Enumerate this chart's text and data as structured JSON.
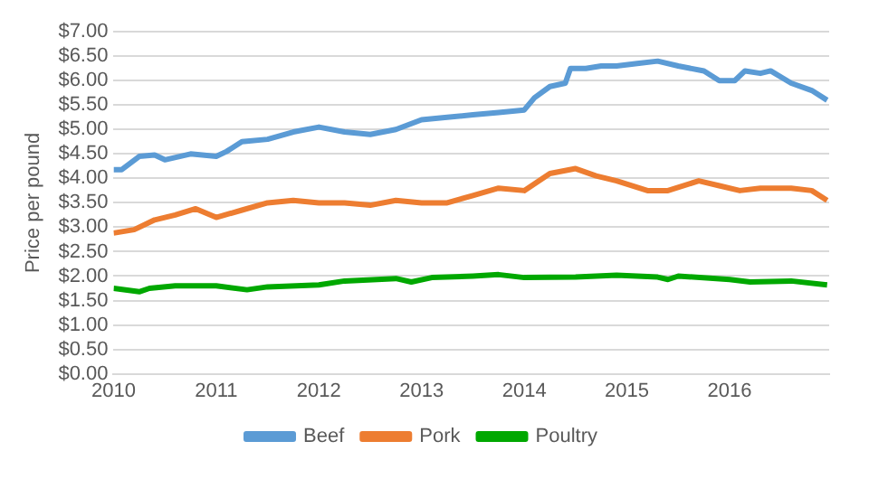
{
  "chart_data": {
    "type": "line",
    "ylabel": "Price per pound",
    "xlim": [
      2010,
      2016.97
    ],
    "xticks": [
      2010,
      2011,
      2012,
      2013,
      2014,
      2015,
      2016
    ],
    "ylim": [
      0,
      7
    ],
    "yticks": [
      {
        "value": 0,
        "label": "$0.00"
      },
      {
        "value": 0.5,
        "label": "$0.50"
      },
      {
        "value": 1,
        "label": "$1.00"
      },
      {
        "value": 1.5,
        "label": "$1.50"
      },
      {
        "value": 2,
        "label": "$2.00"
      },
      {
        "value": 2.5,
        "label": "$2.50"
      },
      {
        "value": 3,
        "label": "$3.00"
      },
      {
        "value": 3.5,
        "label": "$3.50"
      },
      {
        "value": 4,
        "label": "$4.00"
      },
      {
        "value": 4.5,
        "label": "$4.50"
      },
      {
        "value": 5,
        "label": "$5.00"
      },
      {
        "value": 5.5,
        "label": "$5.50"
      },
      {
        "value": 6,
        "label": "$6.00"
      },
      {
        "value": 6.5,
        "label": "$6.50"
      },
      {
        "value": 7,
        "label": "$7.00"
      }
    ],
    "grid": "y",
    "legend": "bottom",
    "marker": "none",
    "line_style": "solid",
    "series": [
      {
        "name": "Beef",
        "color": "#5b9bd5",
        "x": [
          2010,
          2010.08,
          2010.25,
          2010.4,
          2010.5,
          2010.75,
          2011,
          2011.1,
          2011.25,
          2011.5,
          2011.75,
          2012,
          2012.25,
          2012.5,
          2012.75,
          2013,
          2013.25,
          2013.5,
          2013.75,
          2014,
          2014.1,
          2014.25,
          2014.4,
          2014.45,
          2014.6,
          2014.75,
          2014.9,
          2015.1,
          2015.3,
          2015.5,
          2015.75,
          2015.9,
          2016.05,
          2016.15,
          2016.3,
          2016.4,
          2016.6,
          2016.8,
          2016.95
        ],
        "values": [
          4.18,
          4.18,
          4.45,
          4.48,
          4.38,
          4.5,
          4.45,
          4.55,
          4.75,
          4.8,
          4.95,
          5.05,
          4.95,
          4.9,
          5.0,
          5.2,
          5.25,
          5.3,
          5.35,
          5.4,
          5.65,
          5.88,
          5.95,
          6.25,
          6.25,
          6.3,
          6.3,
          6.35,
          6.4,
          6.3,
          6.2,
          6.0,
          6.0,
          6.2,
          6.15,
          6.2,
          5.95,
          5.8,
          5.6
        ]
      },
      {
        "name": "Pork",
        "color": "#ed7d31",
        "x": [
          2010,
          2010.2,
          2010.4,
          2010.6,
          2010.8,
          2011,
          2011.25,
          2011.5,
          2011.75,
          2012,
          2012.25,
          2012.5,
          2012.75,
          2013,
          2013.25,
          2013.5,
          2013.75,
          2014,
          2014.25,
          2014.5,
          2014.7,
          2014.9,
          2015.2,
          2015.4,
          2015.7,
          2015.9,
          2016.1,
          2016.3,
          2016.6,
          2016.8,
          2016.95
        ],
        "values": [
          2.88,
          2.95,
          3.15,
          3.25,
          3.38,
          3.2,
          3.35,
          3.5,
          3.55,
          3.5,
          3.5,
          3.45,
          3.55,
          3.5,
          3.5,
          3.65,
          3.8,
          3.75,
          4.1,
          4.2,
          4.05,
          3.95,
          3.75,
          3.75,
          3.95,
          3.85,
          3.75,
          3.8,
          3.8,
          3.75,
          3.55
        ]
      },
      {
        "name": "Poultry",
        "color": "#00a800",
        "x": [
          2010,
          2010.25,
          2010.35,
          2010.6,
          2011,
          2011.3,
          2011.5,
          2012,
          2012.25,
          2012.75,
          2012.9,
          2013.1,
          2013.5,
          2013.75,
          2014,
          2014.5,
          2014.9,
          2015.3,
          2015.4,
          2015.5,
          2016,
          2016.2,
          2016.6,
          2016.95
        ],
        "values": [
          1.75,
          1.68,
          1.75,
          1.8,
          1.8,
          1.72,
          1.78,
          1.82,
          1.9,
          1.95,
          1.88,
          1.97,
          2.0,
          2.03,
          1.97,
          1.98,
          2.02,
          1.98,
          1.93,
          2.0,
          1.93,
          1.88,
          1.9,
          1.82
        ]
      }
    ]
  }
}
